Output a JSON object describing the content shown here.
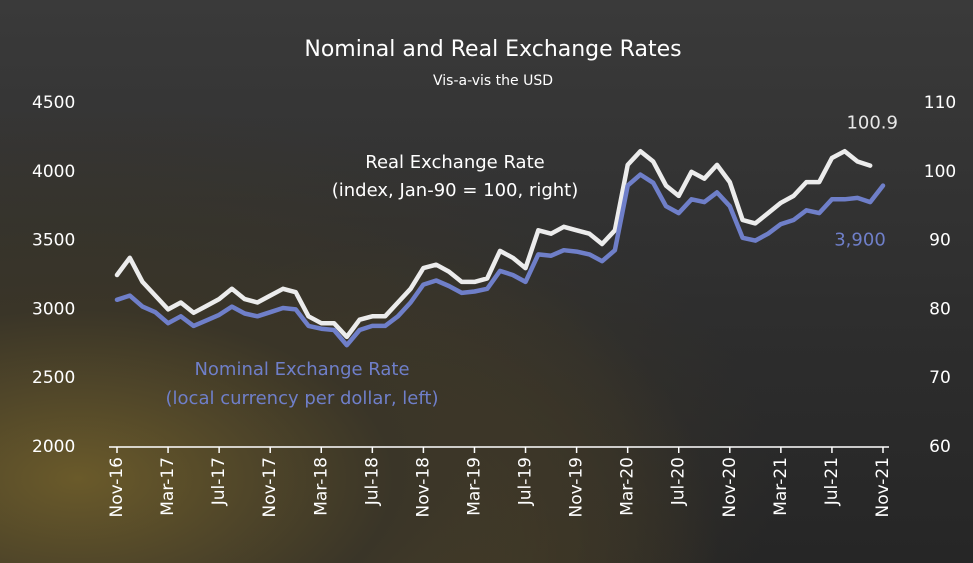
{
  "chart_data": {
    "type": "line",
    "title": "Nominal and Real Exchange Rates",
    "subtitle": "Vis-a-vis the USD",
    "categories": [
      "Nov-16",
      null,
      null,
      null,
      "Mar-17",
      null,
      null,
      null,
      "Jul-17",
      null,
      null,
      null,
      "Nov-17",
      null,
      null,
      null,
      "Mar-18",
      null,
      null,
      null,
      "Jul-18",
      null,
      null,
      null,
      "Nov-18",
      null,
      null,
      null,
      "Mar-19",
      null,
      null,
      null,
      "Jul-19",
      null,
      null,
      null,
      "Nov-19",
      null,
      null,
      null,
      "Mar-20",
      null,
      null,
      null,
      "Jul-20",
      null,
      null,
      null,
      "Nov-20",
      null,
      null,
      null,
      "Mar-21",
      null,
      null,
      null,
      "Jul-21",
      null,
      null,
      null,
      "Nov-21"
    ],
    "series": [
      {
        "name": "Real Exchange Rate",
        "note": "(index, Jan-90 = 100, right)",
        "color": "#ececec",
        "axis": "y2",
        "values": [
          85,
          87.5,
          84,
          82,
          80,
          81,
          79.5,
          80.5,
          81.5,
          83,
          81.5,
          81,
          82,
          83,
          82.5,
          79,
          78,
          78,
          76,
          78.5,
          79,
          79,
          81,
          83,
          86,
          86.5,
          85.5,
          84,
          84,
          84.5,
          88.5,
          87.5,
          86,
          91.5,
          91,
          92,
          91.5,
          91,
          89.5,
          91.5,
          101,
          103,
          101.5,
          98,
          96.5,
          100,
          99,
          101,
          98.5,
          93,
          92.5,
          94,
          95.5,
          96.5,
          98.5,
          98.5,
          102,
          103,
          101.5,
          100.9,
          null
        ],
        "value_labels": [
          null,
          null,
          null,
          null,
          null,
          null,
          null,
          null,
          null,
          null,
          null,
          null,
          null,
          null,
          null,
          null,
          null,
          null,
          null,
          null,
          null,
          null,
          null,
          null,
          null,
          null,
          null,
          null,
          null,
          null,
          null,
          null,
          null,
          null,
          null,
          null,
          null,
          null,
          null,
          null,
          null,
          null,
          null,
          null,
          null,
          null,
          null,
          null,
          null,
          null,
          null,
          null,
          null,
          null,
          null,
          null,
          null,
          null,
          null,
          "100.9",
          null
        ]
      },
      {
        "name": "Nominal Exchange Rate",
        "note": "(local currency per dollar, left)",
        "color": "#6f7fc9",
        "values": [
          3070,
          3100,
          3020,
          2980,
          2900,
          2950,
          2880,
          2920,
          2960,
          3020,
          2970,
          2950,
          2980,
          3010,
          3000,
          2880,
          2860,
          2850,
          2740,
          2850,
          2880,
          2880,
          2950,
          3050,
          3180,
          3210,
          3170,
          3120,
          3130,
          3150,
          3280,
          3250,
          3200,
          3400,
          3390,
          3430,
          3420,
          3400,
          3350,
          3430,
          3900,
          3980,
          3920,
          3750,
          3700,
          3800,
          3780,
          3850,
          3750,
          3520,
          3500,
          3550,
          3620,
          3650,
          3720,
          3700,
          3800,
          3800,
          3810,
          3780,
          3900
        ],
        "value_labels": [
          null,
          null,
          null,
          null,
          null,
          null,
          null,
          null,
          null,
          null,
          null,
          null,
          null,
          null,
          null,
          null,
          null,
          null,
          null,
          null,
          null,
          null,
          null,
          null,
          null,
          null,
          null,
          null,
          null,
          null,
          null,
          null,
          null,
          null,
          null,
          null,
          null,
          null,
          null,
          null,
          null,
          null,
          null,
          null,
          null,
          null,
          null,
          null,
          null,
          null,
          null,
          null,
          null,
          null,
          null,
          null,
          null,
          null,
          null,
          null,
          "3,900"
        ]
      }
    ],
    "ylim": [
      2000,
      4500
    ],
    "yticks": [
      2000,
      2500,
      3000,
      3500,
      4000,
      4500
    ],
    "y2lim": [
      60,
      110
    ],
    "y2ticks": [
      60,
      70,
      80,
      90,
      100,
      110
    ],
    "grid": false
  }
}
